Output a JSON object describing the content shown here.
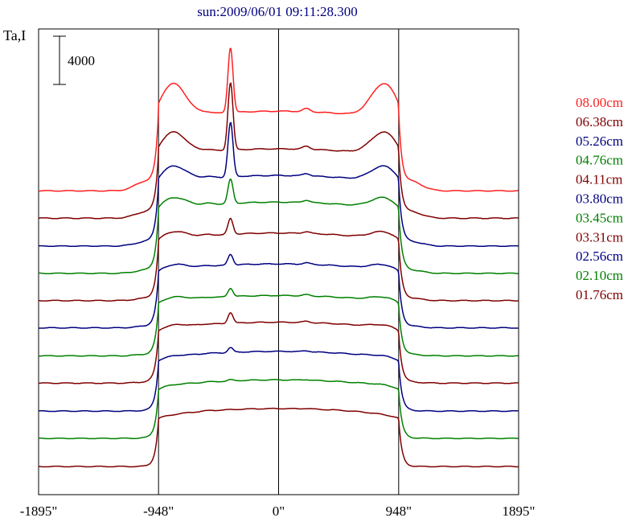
{
  "chart_data": {
    "type": "line",
    "title": "sun:2009/06/01 09:11:28.300",
    "ylabel": "Ta,I",
    "scale_bar_label": "4000",
    "xlim": [
      -1895,
      1895
    ],
    "x_ticks": [
      -1895,
      -948,
      0,
      948,
      1895
    ],
    "x_tick_labels": [
      "-1895\"",
      "-948\"",
      "0\"",
      "948\"",
      "1895\""
    ],
    "vertical_lines_at": [
      -948,
      0,
      948
    ],
    "grid": false,
    "legend_position": "right",
    "colors": {
      "red": "#ff2020",
      "maroon": "#800000",
      "navy": "#000080",
      "green": "#008000",
      "axis": "#000000",
      "title": "#000080"
    },
    "series": [
      {
        "name": "08.00cm",
        "color": "#ff2020",
        "baseline": 21050,
        "limb": 3000,
        "disk": 6600,
        "peak_x": -380,
        "peak": 5400,
        "bump": 250
      },
      {
        "name": "06.38cm",
        "color": "#800000",
        "baseline": 18780,
        "limb": 2000,
        "disk": 5750,
        "peak_x": -380,
        "peak": 5600,
        "bump": 250
      },
      {
        "name": "05.26cm",
        "color": "#000080",
        "baseline": 16470,
        "limb": 1400,
        "disk": 5850,
        "peak_x": -380,
        "peak": 4500,
        "bump": 200
      },
      {
        "name": "04.76cm",
        "color": "#008000",
        "baseline": 14210,
        "limb": 1000,
        "disk": 5900,
        "peak_x": -380,
        "peak": 2000,
        "bump": 200
      },
      {
        "name": "04.11cm",
        "color": "#800000",
        "baseline": 11950,
        "limb": 700,
        "disk": 5600,
        "peak_x": -380,
        "peak": 1300,
        "bump": 150
      },
      {
        "name": "03.80cm",
        "color": "#000080",
        "baseline": 9690,
        "limb": 500,
        "disk": 5300,
        "peak_x": -380,
        "peak": 900,
        "bump": 120
      },
      {
        "name": "03.45cm",
        "color": "#008000",
        "baseline": 7370,
        "limb": 400,
        "disk": 5000,
        "peak_x": -380,
        "peak": 700,
        "bump": 100
      },
      {
        "name": "03.31cm",
        "color": "#800000",
        "baseline": 5110,
        "limb": 300,
        "disk": 5050,
        "peak_x": -380,
        "peak": 900,
        "bump": 100
      },
      {
        "name": "02.56cm",
        "color": "#000080",
        "baseline": 2790,
        "limb": 150,
        "disk": 4950,
        "peak_x": -380,
        "peak": 400,
        "bump": 80
      },
      {
        "name": "02.10cm",
        "color": "#008000",
        "baseline": 530,
        "limb": 100,
        "disk": 4850,
        "peak_x": -380,
        "peak": 100,
        "bump": 50
      },
      {
        "name": "01.76cm",
        "color": "#800000",
        "baseline": -1800,
        "limb": 0,
        "disk": 4800,
        "peak_x": -380,
        "peak": 0,
        "bump": 40
      }
    ]
  }
}
